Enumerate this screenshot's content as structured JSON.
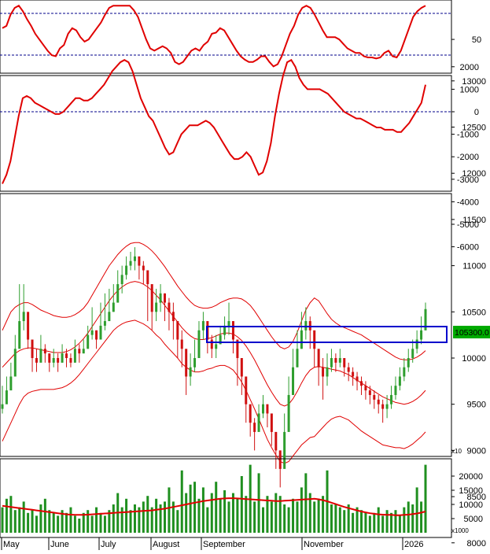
{
  "colors": {
    "up": "#2e9e2e",
    "down": "#d01010",
    "ma": "#e00000",
    "ref": "#00008b",
    "volume": "#1f8f1f",
    "box": "#0000cc",
    "last_bg": "#00aa00"
  },
  "chart_data": [
    {
      "type": "line",
      "panel": "oscillator",
      "series": [
        {
          "values": [
            60,
            62,
            72,
            78,
            80,
            75,
            68,
            62,
            55,
            50,
            45,
            40,
            36,
            35,
            42,
            45,
            55,
            60,
            58,
            52,
            48,
            50,
            55,
            60,
            65,
            72,
            78,
            80,
            80,
            80,
            80,
            80,
            76,
            70,
            60,
            50,
            42,
            40,
            42,
            44,
            42,
            38,
            30,
            28,
            30,
            35,
            40,
            42,
            40,
            45,
            48,
            55,
            56,
            60,
            58,
            52,
            46,
            40,
            35,
            32,
            30,
            30,
            32,
            35,
            35,
            30,
            26,
            28,
            35,
            45,
            55,
            62,
            72,
            78,
            80,
            78,
            72,
            65,
            58,
            52,
            52,
            52,
            50,
            46,
            42,
            40,
            38,
            38,
            35,
            34,
            34,
            33,
            34,
            38,
            40,
            35,
            34,
            40,
            50,
            60,
            70,
            75,
            78,
            80
          ]
        }
      ],
      "ytick_labels": [
        "50"
      ]
    },
    {
      "type": "line",
      "panel": "macd",
      "series": [
        {
          "values": [
            -3200,
            -2800,
            -2200,
            -1200,
            -200,
            600,
            700,
            600,
            400,
            300,
            200,
            100,
            0,
            -100,
            -100,
            0,
            200,
            400,
            600,
            600,
            500,
            500,
            600,
            800,
            1000,
            1200,
            1500,
            1800,
            2000,
            2200,
            2300,
            2200,
            1800,
            1200,
            600,
            200,
            -200,
            -400,
            -800,
            -1200,
            -1600,
            -1900,
            -1800,
            -1400,
            -1000,
            -800,
            -600,
            -600,
            -600,
            -500,
            -400,
            -500,
            -700,
            -1000,
            -1300,
            -1600,
            -1900,
            -2100,
            -2100,
            -2000,
            -1800,
            -2000,
            -2400,
            -2800,
            -2700,
            -2200,
            -1400,
            -200,
            800,
            1600,
            2200,
            2300,
            2000,
            1500,
            1200,
            1000,
            1000,
            1000,
            1000,
            900,
            800,
            600,
            400,
            200,
            0,
            -100,
            -200,
            -300,
            -300,
            -400,
            -500,
            -600,
            -700,
            -700,
            -800,
            -800,
            -800,
            -900,
            -900,
            -700,
            -500,
            -200,
            100,
            400,
            1200
          ]
        }
      ],
      "ytick_labels": [
        "2000",
        "1000",
        "0",
        "-1000",
        "-2000",
        "-3000",
        "-4000",
        "-5000",
        "-6000"
      ]
    },
    {
      "type": "candlestick",
      "panel": "price",
      "ytick_labels": [
        "13000",
        "12500",
        "12000",
        "11500",
        "11000",
        "10500",
        "10000",
        "9500",
        "9000",
        "8500",
        "8000"
      ],
      "last_price_label": "105300.0",
      "candles": [
        [
          9500,
          9400,
          9700
        ],
        [
          9650,
          9550,
          9800
        ],
        [
          9800,
          9700,
          9950
        ],
        [
          10100,
          9950,
          10250
        ],
        [
          10400,
          10200,
          10800
        ],
        [
          10500,
          10300,
          10800
        ],
        [
          10200,
          10100,
          10400
        ],
        [
          10000,
          9850,
          10150
        ],
        [
          9950,
          9850,
          10100
        ],
        [
          10100,
          10000,
          10250
        ],
        [
          10050,
          9950,
          10150
        ],
        [
          9950,
          9850,
          10050
        ],
        [
          10000,
          9900,
          10100
        ],
        [
          9950,
          9850,
          10050
        ],
        [
          10050,
          9950,
          10150
        ],
        [
          10000,
          9900,
          10100
        ],
        [
          9950,
          9900,
          10050
        ],
        [
          10100,
          10000,
          10200
        ],
        [
          10050,
          9950,
          10150
        ],
        [
          10100,
          10050,
          10200
        ],
        [
          10250,
          10100,
          10350
        ],
        [
          10300,
          10200,
          10550
        ],
        [
          10200,
          10100,
          10300
        ],
        [
          10350,
          10250,
          10600
        ],
        [
          10400,
          10300,
          10700
        ],
        [
          10500,
          10400,
          10750
        ],
        [
          10600,
          10500,
          10800
        ],
        [
          10800,
          10600,
          10950
        ],
        [
          10900,
          10700,
          11000
        ],
        [
          11000,
          10850,
          11100
        ],
        [
          11050,
          10950,
          11150
        ],
        [
          11100,
          10950,
          11200
        ],
        [
          11000,
          10850,
          11100
        ],
        [
          10950,
          10800,
          11050
        ],
        [
          10800,
          10400,
          10950
        ],
        [
          10500,
          10300,
          10700
        ],
        [
          10600,
          10400,
          10750
        ],
        [
          10700,
          10500,
          10800
        ],
        [
          10600,
          10400,
          10700
        ],
        [
          10500,
          10300,
          10650
        ],
        [
          10400,
          10200,
          10600
        ],
        [
          10200,
          10000,
          10350
        ],
        [
          10100,
          9900,
          10300
        ],
        [
          9800,
          9600,
          10000
        ],
        [
          9900,
          9700,
          10050
        ],
        [
          10000,
          9850,
          10200
        ],
        [
          10300,
          10100,
          10400
        ],
        [
          10400,
          10200,
          10500
        ],
        [
          10200,
          10050,
          10300
        ],
        [
          10100,
          10000,
          10250
        ],
        [
          10150,
          10000,
          10250
        ],
        [
          10250,
          10150,
          10350
        ],
        [
          10350,
          10200,
          10450
        ],
        [
          10400,
          10250,
          10600
        ],
        [
          10200,
          10050,
          10350
        ],
        [
          10000,
          9700,
          10150
        ],
        [
          9800,
          9600,
          9950
        ],
        [
          9500,
          9300,
          9750
        ],
        [
          9300,
          9150,
          9500
        ],
        [
          9200,
          9000,
          9350
        ],
        [
          9400,
          9250,
          9500
        ],
        [
          9500,
          9350,
          9600
        ],
        [
          9400,
          9250,
          9500
        ],
        [
          9200,
          9050,
          9350
        ],
        [
          9000,
          8800,
          9200
        ],
        [
          8800,
          8600,
          9000
        ],
        [
          9200,
          9000,
          9400
        ],
        [
          9600,
          9400,
          9800
        ],
        [
          9900,
          9700,
          10100
        ],
        [
          10100,
          9900,
          10300
        ],
        [
          10300,
          10100,
          10500
        ],
        [
          10400,
          10200,
          10550
        ],
        [
          10300,
          10100,
          10450
        ],
        [
          10100,
          9900,
          10250
        ],
        [
          9900,
          9700,
          10050
        ],
        [
          9800,
          9550,
          10000
        ],
        [
          9900,
          9700,
          10050
        ],
        [
          10000,
          9850,
          10100
        ],
        [
          9950,
          9850,
          10050
        ],
        [
          10000,
          9900,
          10100
        ],
        [
          9900,
          9800,
          10000
        ],
        [
          9850,
          9750,
          9950
        ],
        [
          9800,
          9700,
          9900
        ],
        [
          9750,
          9650,
          9850
        ],
        [
          9700,
          9600,
          9800
        ],
        [
          9650,
          9550,
          9750
        ],
        [
          9600,
          9500,
          9700
        ],
        [
          9550,
          9450,
          9650
        ],
        [
          9500,
          9400,
          9600
        ],
        [
          9450,
          9300,
          9550
        ],
        [
          9500,
          9350,
          9600
        ],
        [
          9600,
          9450,
          9700
        ],
        [
          9700,
          9550,
          9800
        ],
        [
          9800,
          9650,
          9900
        ],
        [
          9900,
          9750,
          10000
        ],
        [
          10000,
          9850,
          10100
        ],
        [
          10100,
          9950,
          10200
        ],
        [
          10200,
          10050,
          10300
        ],
        [
          10300,
          10150,
          10450
        ],
        [
          10530,
          10300,
          10600
        ]
      ],
      "ma_upper": [
        10300,
        10400,
        10500,
        10550,
        10580,
        10600,
        10600,
        10580,
        10550,
        10520,
        10500,
        10480,
        10460,
        10450,
        10440,
        10440,
        10450,
        10470,
        10500,
        10540,
        10600,
        10680,
        10760,
        10840,
        10920,
        11000,
        11060,
        11120,
        11170,
        11210,
        11240,
        11250,
        11250,
        11230,
        11200,
        11160,
        11110,
        11050,
        10990,
        10920,
        10850,
        10780,
        10720,
        10660,
        10610,
        10570,
        10550,
        10540,
        10540,
        10550,
        10570,
        10600,
        10620,
        10640,
        10650,
        10650,
        10640,
        10610,
        10570,
        10510,
        10440,
        10370,
        10300,
        10230,
        10170,
        10120,
        10100,
        10120,
        10180,
        10280,
        10400,
        10520,
        10600,
        10650,
        10620,
        10550,
        10480,
        10420,
        10380,
        10350,
        10330,
        10310,
        10290,
        10270,
        10250,
        10220,
        10190,
        10160,
        10130,
        10100,
        10070,
        10040,
        10010,
        9990,
        9980,
        9980,
        9990,
        10010,
        10040,
        10080
      ],
      "ma_mid": [
        9900,
        9950,
        10000,
        10050,
        10080,
        10100,
        10110,
        10110,
        10100,
        10090,
        10080,
        10070,
        10060,
        10060,
        10060,
        10070,
        10090,
        10120,
        10160,
        10210,
        10270,
        10340,
        10410,
        10480,
        10550,
        10620,
        10680,
        10730,
        10770,
        10800,
        10820,
        10830,
        10820,
        10800,
        10770,
        10730,
        10680,
        10630,
        10570,
        10510,
        10450,
        10390,
        10330,
        10280,
        10240,
        10210,
        10200,
        10200,
        10210,
        10220,
        10240,
        10260,
        10270,
        10270,
        10260,
        10230,
        10190,
        10130,
        10060,
        9980,
        9890,
        9800,
        9710,
        9630,
        9560,
        9500,
        9480,
        9500,
        9560,
        9640,
        9730,
        9810,
        9870,
        9900,
        9910,
        9900,
        9890,
        9880,
        9870,
        9860,
        9840,
        9820,
        9790,
        9760,
        9730,
        9700,
        9670,
        9640,
        9610,
        9580,
        9560,
        9540,
        9520,
        9510,
        9500,
        9510,
        9530,
        9560,
        9600,
        9650
      ],
      "ma_lower": [
        9100,
        9200,
        9300,
        9400,
        9500,
        9580,
        9620,
        9640,
        9650,
        9660,
        9660,
        9660,
        9660,
        9670,
        9680,
        9700,
        9730,
        9770,
        9820,
        9880,
        9940,
        10000,
        10060,
        10120,
        10180,
        10240,
        10300,
        10340,
        10370,
        10390,
        10400,
        10410,
        10390,
        10370,
        10340,
        10300,
        10250,
        10210,
        10150,
        10100,
        10050,
        10000,
        9940,
        9900,
        9870,
        9850,
        9850,
        9860,
        9880,
        9890,
        9910,
        9920,
        9920,
        9900,
        9870,
        9810,
        9740,
        9650,
        9550,
        9450,
        9340,
        9230,
        9120,
        9030,
        8950,
        8880,
        8860,
        8880,
        8940,
        9000,
        9060,
        9100,
        9140,
        9150,
        9200,
        9250,
        9300,
        9340,
        9360,
        9370,
        9350,
        9330,
        9290,
        9250,
        9210,
        9180,
        9150,
        9120,
        9090,
        9060,
        9050,
        9040,
        9030,
        9030,
        9020,
        9040,
        9070,
        9110,
        9150,
        9200
      ]
    },
    {
      "type": "bar",
      "panel": "volume",
      "values": [
        9000,
        12000,
        13000,
        8000,
        9000,
        11000,
        7000,
        8000,
        6000,
        10000,
        12000,
        8000,
        7000,
        6000,
        8000,
        7000,
        9000,
        6000,
        5000,
        7000,
        8000,
        6000,
        9000,
        7000,
        6000,
        8000,
        10000,
        14000,
        9000,
        12000,
        8000,
        10000,
        9000,
        11000,
        13000,
        9000,
        12000,
        10000,
        11000,
        16000,
        11000,
        8000,
        22000,
        14000,
        17000,
        18000,
        12000,
        16000,
        9000,
        14000,
        18000,
        12000,
        15000,
        11000,
        14000,
        12000,
        20000,
        13000,
        24000,
        11000,
        21000,
        9000,
        13000,
        11000,
        14000,
        13000,
        10000,
        9000,
        12000,
        11000,
        16000,
        21000,
        14000,
        11000,
        12000,
        13000,
        22000,
        10000,
        10000,
        9000,
        8000,
        10000,
        7000,
        9000,
        8000,
        7000,
        6000,
        7000,
        9000,
        6000,
        8000,
        7000,
        8000,
        6000,
        9000,
        11000,
        10000,
        16000,
        11000,
        24000
      ],
      "ma": [
        9500,
        9300,
        9100,
        8900,
        8700,
        8500,
        8300,
        8100,
        7900,
        7700,
        7500,
        7300,
        7100,
        6900,
        6700,
        6500,
        6400,
        6300,
        6300,
        6300,
        6400,
        6500,
        6600,
        6700,
        6800,
        6900,
        7000,
        7100,
        7200,
        7300,
        7400,
        7500,
        7600,
        7700,
        7800,
        7900,
        8100,
        8300,
        8500,
        8800,
        9100,
        9400,
        9700,
        10000,
        10300,
        10600,
        10900,
        11200,
        11400,
        11600,
        11800,
        12000,
        12100,
        12200,
        12200,
        12100,
        12000,
        11900,
        11800,
        11700,
        11600,
        11500,
        11400,
        11300,
        11200,
        11200,
        11300,
        11400,
        11500,
        11600,
        11700,
        11800,
        11900,
        12000,
        11800,
        11500,
        11100,
        10600,
        10100,
        9600,
        9100,
        8700,
        8300,
        7900,
        7500,
        7200,
        6900,
        6700,
        6500,
        6400,
        6300,
        6300,
        6200,
        6200,
        6300,
        6400,
        6600,
        6800,
        7100,
        7500
      ],
      "ytick_labels": [
        "20000",
        "15000",
        "10000",
        "5000"
      ],
      "unit_label": "x1000"
    }
  ],
  "x_axis": {
    "month_labels": [
      "May",
      "June",
      "July",
      "August",
      "September",
      "November",
      "2026"
    ]
  },
  "price_scale_label": "x10"
}
